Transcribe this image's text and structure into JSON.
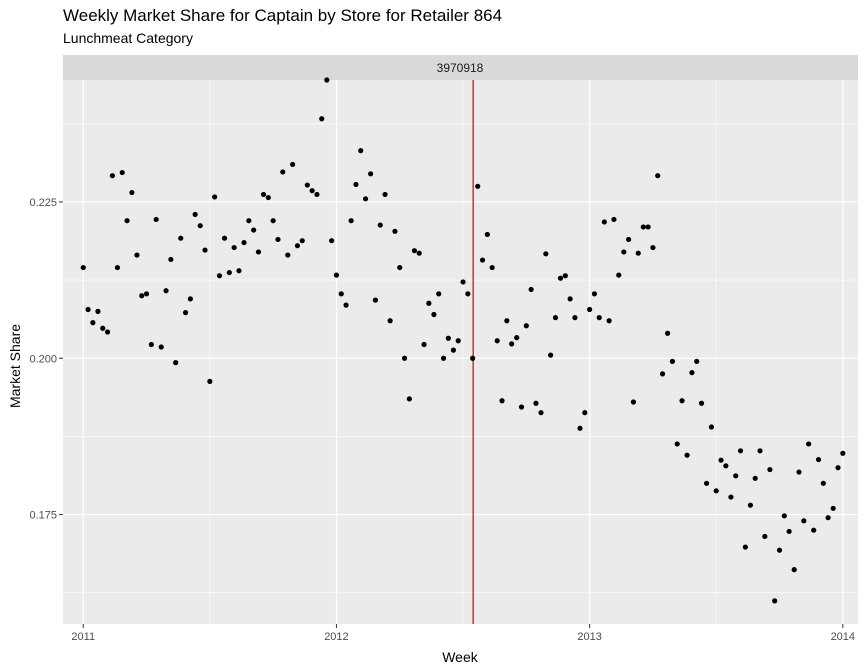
{
  "chart_data": {
    "type": "scatter",
    "title": "Weekly Market Share for Captain by Store for Retailer 864",
    "subtitle": "Lunchmeat Category",
    "facet_label": "3970918",
    "xlabel": "Week",
    "ylabel": "Market Share",
    "xlim": [
      2010.92,
      2014.06
    ],
    "ylim": [
      0.1575,
      0.2445
    ],
    "x_ticks": [
      2011,
      2012,
      2013,
      2014
    ],
    "x_tick_labels": [
      "2011",
      "2012",
      "2013",
      "2014"
    ],
    "y_ticks": [
      0.175,
      0.2,
      0.225
    ],
    "y_tick_labels": [
      "0.175",
      "0.200",
      "0.225"
    ],
    "grid": true,
    "vline": {
      "x": 2012.54,
      "color": "#cc0000"
    },
    "points": [
      [
        2011.0,
        0.2145
      ],
      [
        2011.019,
        0.2078
      ],
      [
        2011.038,
        0.2057
      ],
      [
        2011.058,
        0.2075
      ],
      [
        2011.077,
        0.2048
      ],
      [
        2011.096,
        0.2042
      ],
      [
        2011.115,
        0.2292
      ],
      [
        2011.135,
        0.2145
      ],
      [
        2011.154,
        0.2297
      ],
      [
        2011.173,
        0.222
      ],
      [
        2011.192,
        0.2265
      ],
      [
        2011.212,
        0.2165
      ],
      [
        2011.231,
        0.21
      ],
      [
        2011.25,
        0.2103
      ],
      [
        2011.269,
        0.2022
      ],
      [
        2011.288,
        0.2222
      ],
      [
        2011.308,
        0.2018
      ],
      [
        2011.327,
        0.2108
      ],
      [
        2011.346,
        0.2158
      ],
      [
        2011.365,
        0.1993
      ],
      [
        2011.385,
        0.2192
      ],
      [
        2011.404,
        0.2073
      ],
      [
        2011.423,
        0.2095
      ],
      [
        2011.442,
        0.223
      ],
      [
        2011.462,
        0.2212
      ],
      [
        2011.481,
        0.2173
      ],
      [
        2011.5,
        0.1963
      ],
      [
        2011.519,
        0.2258
      ],
      [
        2011.538,
        0.2132
      ],
      [
        2011.558,
        0.2192
      ],
      [
        2011.577,
        0.2137
      ],
      [
        2011.596,
        0.2177
      ],
      [
        2011.615,
        0.214
      ],
      [
        2011.635,
        0.2185
      ],
      [
        2011.654,
        0.222
      ],
      [
        2011.673,
        0.2205
      ],
      [
        2011.692,
        0.217
      ],
      [
        2011.712,
        0.2262
      ],
      [
        2011.731,
        0.2257
      ],
      [
        2011.75,
        0.222
      ],
      [
        2011.769,
        0.219
      ],
      [
        2011.788,
        0.2298
      ],
      [
        2011.808,
        0.2165
      ],
      [
        2011.827,
        0.231
      ],
      [
        2011.846,
        0.218
      ],
      [
        2011.865,
        0.2188
      ],
      [
        2011.885,
        0.2277
      ],
      [
        2011.904,
        0.2268
      ],
      [
        2011.923,
        0.2262
      ],
      [
        2011.942,
        0.2383
      ],
      [
        2011.962,
        0.2445
      ],
      [
        2011.981,
        0.2188
      ],
      [
        2012.0,
        0.2133
      ],
      [
        2012.019,
        0.2103
      ],
      [
        2012.038,
        0.2085
      ],
      [
        2012.058,
        0.222
      ],
      [
        2012.077,
        0.2278
      ],
      [
        2012.096,
        0.2332
      ],
      [
        2012.115,
        0.2255
      ],
      [
        2012.135,
        0.2295
      ],
      [
        2012.154,
        0.2093
      ],
      [
        2012.173,
        0.2213
      ],
      [
        2012.192,
        0.2262
      ],
      [
        2012.212,
        0.206
      ],
      [
        2012.231,
        0.2203
      ],
      [
        2012.25,
        0.2145
      ],
      [
        2012.269,
        0.2
      ],
      [
        2012.288,
        0.1935
      ],
      [
        2012.308,
        0.2172
      ],
      [
        2012.327,
        0.2168
      ],
      [
        2012.346,
        0.2022
      ],
      [
        2012.365,
        0.2088
      ],
      [
        2012.385,
        0.207
      ],
      [
        2012.404,
        0.2103
      ],
      [
        2012.423,
        0.2
      ],
      [
        2012.442,
        0.2032
      ],
      [
        2012.462,
        0.2013
      ],
      [
        2012.481,
        0.2028
      ],
      [
        2012.5,
        0.2122
      ],
      [
        2012.519,
        0.2103
      ],
      [
        2012.538,
        0.2
      ],
      [
        2012.558,
        0.2275
      ],
      [
        2012.577,
        0.2157
      ],
      [
        2012.596,
        0.2198
      ],
      [
        2012.615,
        0.2145
      ],
      [
        2012.635,
        0.2028
      ],
      [
        2012.654,
        0.1932
      ],
      [
        2012.673,
        0.206
      ],
      [
        2012.692,
        0.2023
      ],
      [
        2012.712,
        0.2033
      ],
      [
        2012.731,
        0.1922
      ],
      [
        2012.75,
        0.2052
      ],
      [
        2012.769,
        0.211
      ],
      [
        2012.788,
        0.1928
      ],
      [
        2012.808,
        0.1913
      ],
      [
        2012.827,
        0.2167
      ],
      [
        2012.846,
        0.2005
      ],
      [
        2012.865,
        0.2065
      ],
      [
        2012.885,
        0.2128
      ],
      [
        2012.904,
        0.2132
      ],
      [
        2012.923,
        0.2095
      ],
      [
        2012.942,
        0.2065
      ],
      [
        2012.962,
        0.1888
      ],
      [
        2012.981,
        0.1913
      ],
      [
        2013.0,
        0.2078
      ],
      [
        2013.019,
        0.2103
      ],
      [
        2013.038,
        0.2065
      ],
      [
        2013.058,
        0.2218
      ],
      [
        2013.077,
        0.206
      ],
      [
        2013.096,
        0.2222
      ],
      [
        2013.115,
        0.2133
      ],
      [
        2013.135,
        0.217
      ],
      [
        2013.154,
        0.219
      ],
      [
        2013.173,
        0.193
      ],
      [
        2013.192,
        0.2168
      ],
      [
        2013.212,
        0.221
      ],
      [
        2013.231,
        0.221
      ],
      [
        2013.25,
        0.2177
      ],
      [
        2013.269,
        0.2292
      ],
      [
        2013.288,
        0.1975
      ],
      [
        2013.308,
        0.204
      ],
      [
        2013.327,
        0.1995
      ],
      [
        2013.346,
        0.1863
      ],
      [
        2013.365,
        0.1932
      ],
      [
        2013.385,
        0.1845
      ],
      [
        2013.404,
        0.1977
      ],
      [
        2013.423,
        0.1995
      ],
      [
        2013.442,
        0.1928
      ],
      [
        2013.462,
        0.18
      ],
      [
        2013.481,
        0.189
      ],
      [
        2013.5,
        0.1788
      ],
      [
        2013.519,
        0.1837
      ],
      [
        2013.538,
        0.1828
      ],
      [
        2013.558,
        0.1778
      ],
      [
        2013.577,
        0.1812
      ],
      [
        2013.596,
        0.1852
      ],
      [
        2013.615,
        0.1698
      ],
      [
        2013.635,
        0.1765
      ],
      [
        2013.654,
        0.1808
      ],
      [
        2013.673,
        0.1852
      ],
      [
        2013.692,
        0.1715
      ],
      [
        2013.712,
        0.1822
      ],
      [
        2013.731,
        0.1612
      ],
      [
        2013.75,
        0.1693
      ],
      [
        2013.769,
        0.1748
      ],
      [
        2013.788,
        0.1723
      ],
      [
        2013.808,
        0.1662
      ],
      [
        2013.827,
        0.1818
      ],
      [
        2013.846,
        0.174
      ],
      [
        2013.865,
        0.1863
      ],
      [
        2013.885,
        0.1725
      ],
      [
        2013.904,
        0.1838
      ],
      [
        2013.923,
        0.18
      ],
      [
        2013.942,
        0.1745
      ],
      [
        2013.962,
        0.176
      ],
      [
        2013.981,
        0.1825
      ],
      [
        2014.0,
        0.1848
      ]
    ]
  }
}
